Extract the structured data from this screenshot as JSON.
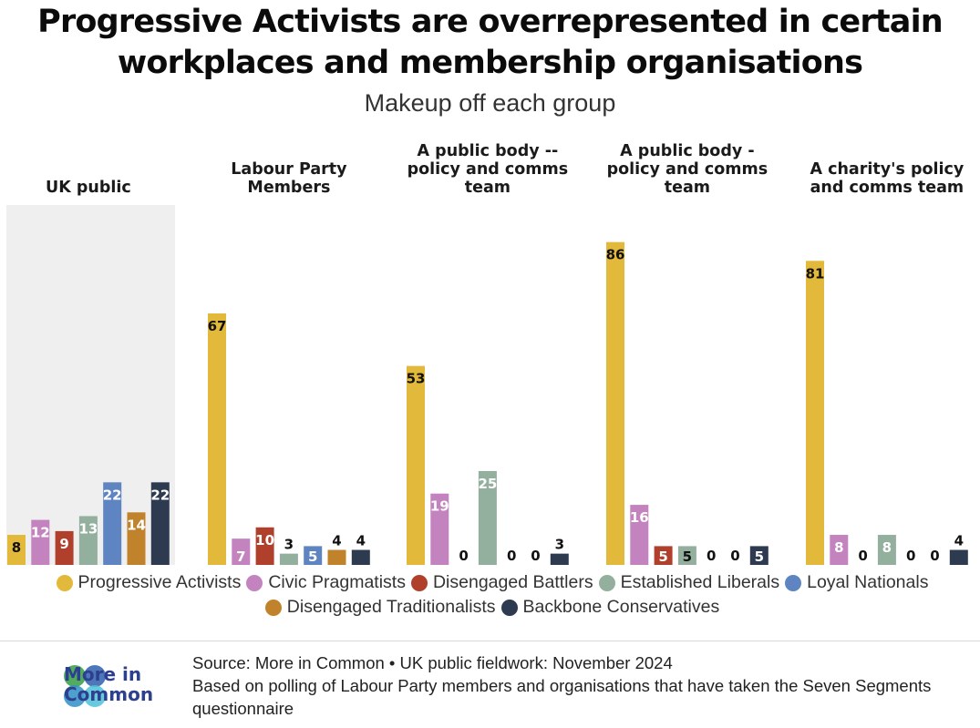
{
  "title_lines": [
    "Progressive Activists are overrepresented in certain",
    "workplaces and membership organisations"
  ],
  "subtitle": "Makeup off each group",
  "colors": {
    "progressive_activists": "#E2B93B",
    "civic_pragmatists": "#C383BE",
    "disengaged_battlers": "#B0402B",
    "established_liberals": "#93AF9E",
    "loyal_nationals": "#5E84C2",
    "disengaged_traditionalists": "#C0822B",
    "backbone_conservatives": "#2D3A50",
    "highlight_panel": "#EFEFEF",
    "logo_text": "#2D3F8F"
  },
  "chart_data": {
    "type": "bar",
    "title": "Progressive Activists are overrepresented in certain workplaces and membership organisations",
    "subtitle": "Makeup off each group",
    "unit": "%",
    "ylim": [
      0,
      90
    ],
    "grid": false,
    "categories": [
      [
        "UK public"
      ],
      [
        "Labour Party",
        "Members"
      ],
      [
        "A public body --",
        "policy and comms",
        "team"
      ],
      [
        "A public body -",
        "policy and comms",
        "team"
      ],
      [
        "A charity's policy",
        "and comms team"
      ]
    ],
    "highlighted_category": 0,
    "series": [
      {
        "name": "Progressive Activists",
        "color_key": "progressive_activists",
        "values": [
          8,
          67,
          53,
          86,
          81
        ]
      },
      {
        "name": "Civic Pragmatists",
        "color_key": "civic_pragmatists",
        "values": [
          12,
          7,
          19,
          16,
          8
        ]
      },
      {
        "name": "Disengaged Battlers",
        "color_key": "disengaged_battlers",
        "values": [
          9,
          10,
          0,
          5,
          0
        ]
      },
      {
        "name": "Established Liberals",
        "color_key": "established_liberals",
        "values": [
          13,
          3,
          25,
          5,
          8
        ]
      },
      {
        "name": "Loyal Nationals",
        "color_key": "loyal_nationals",
        "values": [
          22,
          5,
          0,
          0,
          0
        ]
      },
      {
        "name": "Disengaged Traditionalists",
        "color_key": "disengaged_traditionalists",
        "values": [
          14,
          4,
          0,
          0,
          0
        ]
      },
      {
        "name": "Backbone Conservatives",
        "color_key": "backbone_conservatives",
        "values": [
          22,
          4,
          3,
          5,
          4
        ]
      }
    ]
  },
  "legend": {
    "row1": [
      {
        "label": "Progressive Activists",
        "color_key": "progressive_activists"
      },
      {
        "label": "Civic Pragmatists",
        "color_key": "civic_pragmatists"
      },
      {
        "label": "Disengaged Battlers",
        "color_key": "disengaged_battlers"
      },
      {
        "label": "Established Liberals",
        "color_key": "established_liberals"
      },
      {
        "label": "Loyal Nationals",
        "color_key": "loyal_nationals"
      }
    ],
    "row2": [
      {
        "label": "Disengaged Traditionalists",
        "color_key": "disengaged_traditionalists"
      },
      {
        "label": "Backbone Conservatives",
        "color_key": "backbone_conservatives"
      }
    ]
  },
  "logo": {
    "line1": "More in",
    "line2": "Common"
  },
  "source": {
    "line1": "Source: More in Common • UK public fieldwork: November 2024",
    "line2": "Based on polling of Labour Party members and organisations that have taken the Seven Segments questionnaire"
  }
}
